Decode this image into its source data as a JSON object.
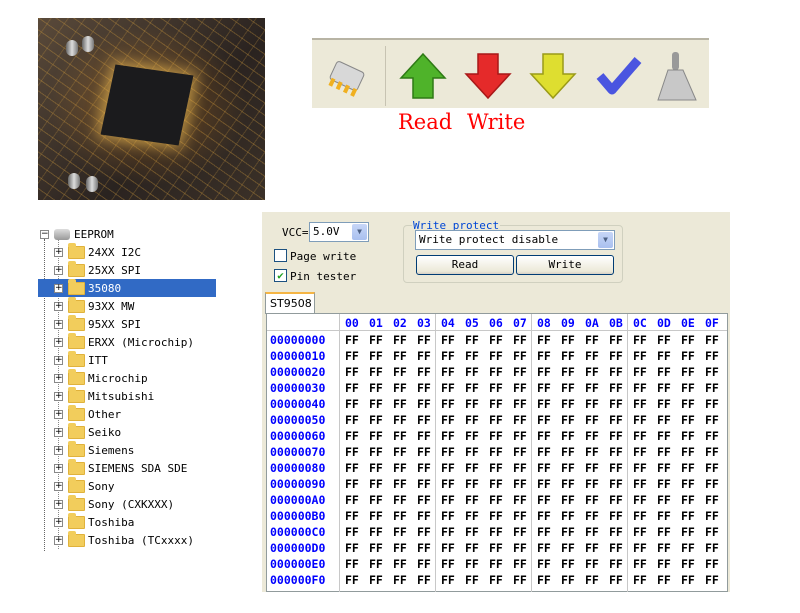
{
  "toolbar": {
    "icons": [
      "chip-icon",
      "read-arrow-up-icon",
      "write-arrow-down-icon",
      "verify-arrow-down-icon",
      "check-icon",
      "erase-brush-icon"
    ],
    "labels": {
      "read": "Read",
      "write": "Write"
    }
  },
  "tree": {
    "root": "EEPROM",
    "items": [
      {
        "label": "24XX I2C"
      },
      {
        "label": "25XX SPI"
      },
      {
        "label": "35080",
        "selected": true
      },
      {
        "label": "93XX MW"
      },
      {
        "label": "95XX SPI"
      },
      {
        "label": "ERXX (Microchip)"
      },
      {
        "label": "ITT"
      },
      {
        "label": "Microchip"
      },
      {
        "label": "Mitsubishi"
      },
      {
        "label": "Other"
      },
      {
        "label": "Seiko"
      },
      {
        "label": "Siemens"
      },
      {
        "label": "SIEMENS SDA SDE"
      },
      {
        "label": "Sony"
      },
      {
        "label": "Sony (CXKXXX)"
      },
      {
        "label": "Toshiba"
      },
      {
        "label": "Toshiba (TCxxxx)"
      }
    ]
  },
  "panel": {
    "vcc_label": "VCC=",
    "vcc_value": "5.0V",
    "page_write": {
      "label": "Page write",
      "checked": false
    },
    "pin_tester": {
      "label": "Pin tester",
      "checked": true
    },
    "write_protect": {
      "title": "Write protect",
      "value": "Write protect disable",
      "read_button": "Read",
      "write_button": "Write"
    },
    "tab": "ST9508"
  },
  "hex": {
    "columns": [
      "00",
      "01",
      "02",
      "03",
      "04",
      "05",
      "06",
      "07",
      "08",
      "09",
      "0A",
      "0B",
      "0C",
      "0D",
      "0E",
      "0F"
    ],
    "addresses": [
      "00000000",
      "00000010",
      "00000020",
      "00000030",
      "00000040",
      "00000050",
      "00000060",
      "00000070",
      "00000080",
      "00000090",
      "000000A0",
      "000000B0",
      "000000C0",
      "000000D0",
      "000000E0",
      "000000F0"
    ],
    "fill_value": "FF"
  },
  "colors": {
    "selection": "#316ac5",
    "hex_blue": "#0000ff",
    "label_red": "#ff0000",
    "panel_bg": "#ece9d8"
  }
}
